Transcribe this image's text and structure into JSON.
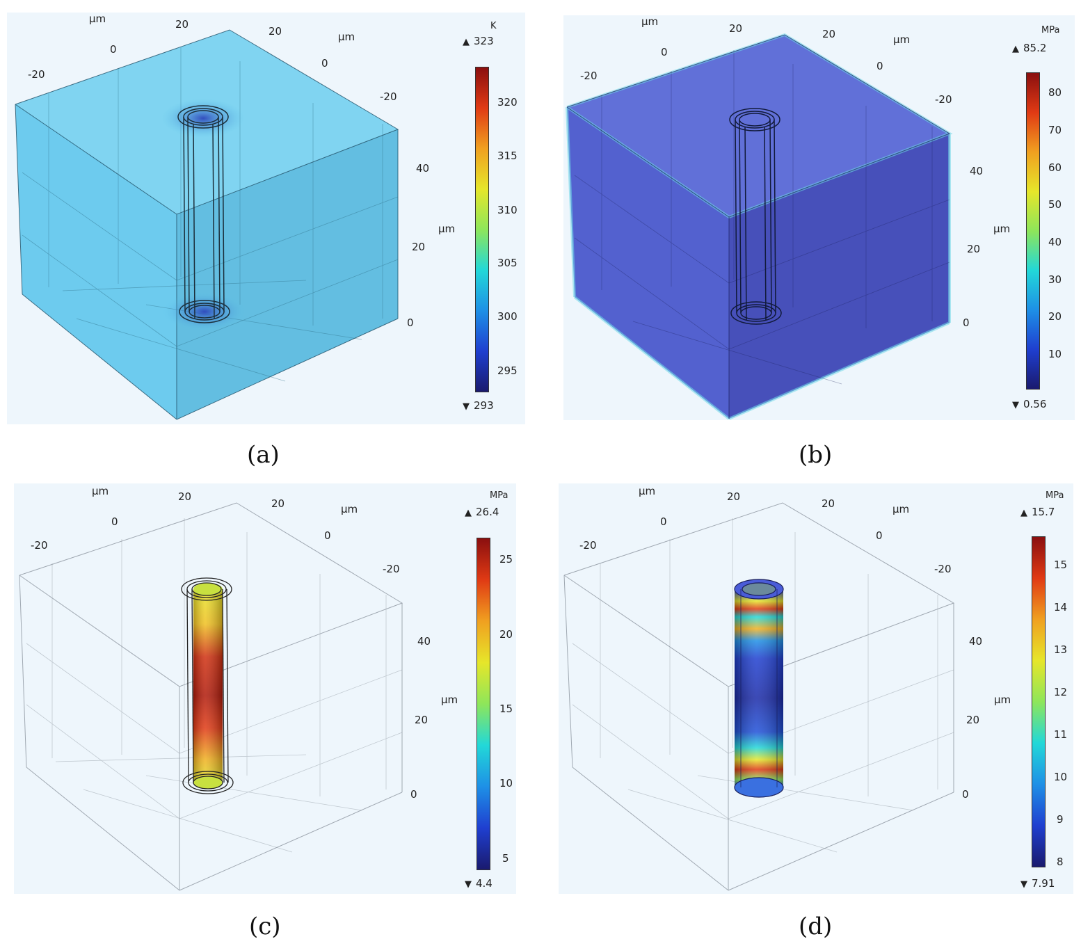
{
  "panels": [
    {
      "id": "a",
      "caption": "(a)",
      "colorbar": {
        "unit": "K",
        "max": "323",
        "min": "293",
        "ticks": [
          "320",
          "315",
          "310",
          "305",
          "300",
          "295"
        ]
      },
      "axis_labels": {
        "x_unit": "μm",
        "y_unit": "μm",
        "z_unit": "μm",
        "x_ticks": [
          "-20",
          "0",
          "20"
        ],
        "y_ticks": [
          "20",
          "0",
          "-20"
        ],
        "z_ticks": [
          "40",
          "20",
          "0"
        ]
      }
    },
    {
      "id": "b",
      "caption": "(b)",
      "colorbar": {
        "unit": "MPa",
        "max": "85.2",
        "min": "0.56",
        "ticks": [
          "80",
          "70",
          "60",
          "50",
          "40",
          "30",
          "20",
          "10"
        ]
      },
      "axis_labels": {
        "x_unit": "μm",
        "y_unit": "μm",
        "z_unit": "μm",
        "x_ticks": [
          "-20",
          "0",
          "20"
        ],
        "y_ticks": [
          "20",
          "0",
          "-20"
        ],
        "z_ticks": [
          "40",
          "20",
          "0"
        ]
      }
    },
    {
      "id": "c",
      "caption": "(c)",
      "colorbar": {
        "unit": "MPa",
        "max": "26.4",
        "min": "4.4",
        "ticks": [
          "25",
          "20",
          "15",
          "10",
          "5"
        ]
      },
      "axis_labels": {
        "x_unit": "μm",
        "y_unit": "μm",
        "z_unit": "μm",
        "x_ticks": [
          "-20",
          "0",
          "20"
        ],
        "y_ticks": [
          "20",
          "0",
          "-20"
        ],
        "z_ticks": [
          "40",
          "20",
          "0"
        ]
      }
    },
    {
      "id": "d",
      "caption": "(d)",
      "colorbar": {
        "unit": "MPa",
        "max": "15.7",
        "min": "7.91",
        "ticks": [
          "15",
          "14",
          "13",
          "12",
          "11",
          "10",
          "9",
          "8"
        ]
      },
      "axis_labels": {
        "x_unit": "μm",
        "y_unit": "μm",
        "z_unit": "μm",
        "x_ticks": [
          "-20",
          "0",
          "20"
        ],
        "y_ticks": [
          "20",
          "0",
          "-20"
        ],
        "z_ticks": [
          "40",
          "20",
          "0"
        ]
      }
    }
  ],
  "colors": {
    "rainbow": [
      "#1a1a6e",
      "#1f3fd0",
      "#1e90e6",
      "#22d8d8",
      "#8ee65a",
      "#e6e62a",
      "#f0a020",
      "#e03a14",
      "#8a0f0f"
    ],
    "box_a": "#5cc8ea",
    "box_b": "#4a58d0"
  }
}
